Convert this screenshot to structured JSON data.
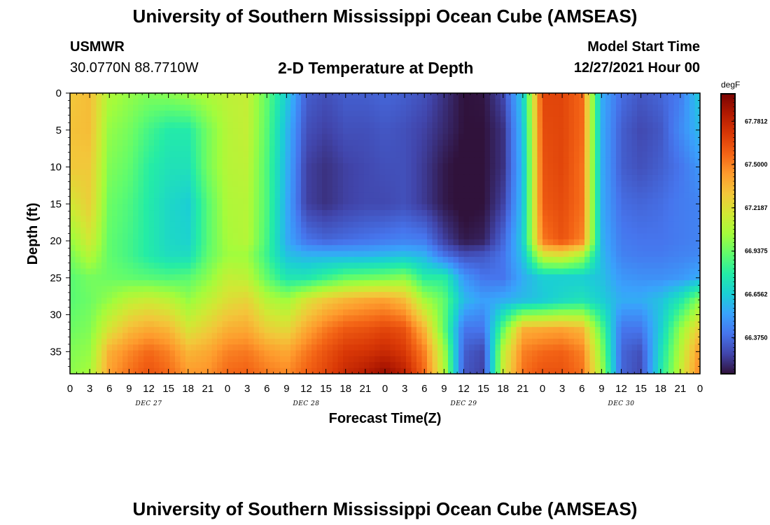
{
  "header": {
    "title": "University of Southern Mississippi Ocean Cube (AMSEAS)",
    "station": "USMWR",
    "coords": "30.0770N  88.7710W",
    "chart_title": "2-D Temperature at Depth",
    "model_start_label": "Model Start Time",
    "model_start_value": "12/27/2021 Hour 00"
  },
  "footer": {
    "title": "University of Southern Mississippi Ocean Cube (AMSEAS)"
  },
  "chart_data": {
    "type": "heatmap",
    "title": "2-D Temperature at Depth",
    "xlabel": "Forecast Time(Z)",
    "ylabel": "Depth (ft)",
    "colorbar_unit": "degF",
    "x_hours": [
      0,
      3,
      6,
      9,
      12,
      15,
      18,
      21,
      24,
      27,
      30,
      33,
      36,
      39,
      42,
      45,
      48,
      51,
      54,
      57,
      60,
      63,
      66,
      69,
      72,
      75,
      78,
      81,
      84,
      87,
      90,
      93,
      96
    ],
    "x_tick_labels": [
      "0",
      "3",
      "6",
      "9",
      "12",
      "15",
      "18",
      "21",
      "0",
      "3",
      "6",
      "9",
      "12",
      "15",
      "18",
      "21",
      "0",
      "3",
      "6",
      "9",
      "12",
      "15",
      "18",
      "21",
      "0",
      "3",
      "6",
      "9",
      "12",
      "15",
      "18",
      "21",
      "0"
    ],
    "date_labels": [
      {
        "text": "DEC 27",
        "hour": 12
      },
      {
        "text": "DEC 28",
        "hour": 36
      },
      {
        "text": "DEC 29",
        "hour": 60
      },
      {
        "text": "DEC 30",
        "hour": 84
      }
    ],
    "y_ticks": [
      0,
      5,
      10,
      15,
      20,
      25,
      30,
      35
    ],
    "ylim": [
      0,
      38
    ],
    "xlim": [
      0,
      96
    ],
    "colorbar_ticks": [
      "67.7812",
      "67.5000",
      "67.2187",
      "66.9375",
      "66.6562",
      "66.3750"
    ],
    "colorbar_range": [
      66.14,
      67.96
    ],
    "colorscale": [
      "#30123b",
      "#4145ab",
      "#4675ed",
      "#39a2fc",
      "#1bcfd4",
      "#24eca6",
      "#61fc6c",
      "#a4fc3b",
      "#d1e834",
      "#f3c63a",
      "#fe9b2d",
      "#f36315",
      "#d93806",
      "#b11901",
      "#7a0402"
    ],
    "grid_hours": [
      0,
      3,
      6,
      9,
      12,
      15,
      18,
      21,
      24,
      27,
      30,
      33,
      36,
      39,
      42,
      45,
      48,
      51,
      54,
      57,
      60,
      63,
      66,
      69,
      72,
      75,
      78,
      81,
      84,
      87,
      90,
      93,
      96
    ],
    "grid_depths": [
      0,
      5,
      10,
      15,
      20,
      22,
      25,
      28,
      32,
      35,
      38
    ],
    "temperature": [
      [
        67.3,
        67.34,
        67.08,
        67.02,
        66.98,
        67.0,
        67.04,
        67.08,
        67.12,
        67.14,
        66.92,
        66.66,
        66.34,
        66.3,
        66.34,
        66.34,
        66.36,
        66.34,
        66.3,
        66.22,
        66.14,
        66.15,
        66.28,
        66.66,
        67.66,
        67.66,
        67.56,
        66.56,
        66.38,
        66.32,
        66.36,
        66.42,
        66.66
      ],
      [
        67.32,
        67.34,
        67.02,
        66.96,
        66.86,
        66.78,
        66.78,
        66.96,
        67.1,
        67.14,
        66.9,
        66.6,
        66.3,
        66.26,
        66.3,
        66.3,
        66.32,
        66.3,
        66.26,
        66.2,
        66.14,
        66.14,
        66.22,
        66.62,
        67.64,
        67.66,
        67.56,
        66.56,
        66.34,
        66.28,
        66.32,
        66.46,
        66.6
      ],
      [
        67.3,
        67.3,
        66.98,
        66.92,
        66.8,
        66.74,
        66.74,
        66.96,
        67.1,
        67.12,
        66.88,
        66.58,
        66.26,
        66.22,
        66.26,
        66.28,
        66.3,
        66.3,
        66.24,
        66.16,
        66.12,
        66.14,
        66.22,
        66.6,
        67.62,
        67.66,
        67.54,
        66.56,
        66.34,
        66.3,
        66.34,
        66.4,
        66.5
      ],
      [
        67.18,
        67.28,
        66.94,
        66.88,
        66.78,
        66.7,
        66.66,
        66.9,
        67.08,
        67.1,
        66.88,
        66.56,
        66.26,
        66.22,
        66.26,
        66.28,
        66.28,
        66.3,
        66.24,
        66.16,
        66.12,
        66.14,
        66.26,
        66.62,
        67.6,
        67.64,
        67.54,
        66.56,
        66.38,
        66.36,
        66.38,
        66.42,
        66.44
      ],
      [
        67.02,
        67.18,
        66.92,
        66.86,
        66.78,
        66.7,
        66.68,
        66.9,
        67.06,
        67.1,
        66.86,
        66.56,
        66.4,
        66.36,
        66.38,
        66.4,
        66.42,
        66.44,
        66.42,
        66.26,
        66.16,
        66.18,
        66.36,
        66.66,
        67.52,
        67.62,
        67.5,
        66.58,
        66.42,
        66.4,
        66.4,
        66.42,
        66.44
      ],
      [
        66.96,
        67.1,
        66.92,
        66.86,
        66.78,
        66.72,
        66.72,
        66.92,
        67.04,
        67.04,
        66.84,
        66.62,
        66.58,
        66.58,
        66.58,
        66.58,
        66.6,
        66.62,
        66.58,
        66.4,
        66.3,
        66.32,
        66.4,
        66.62,
        67.16,
        67.2,
        67.06,
        66.6,
        66.44,
        66.42,
        66.42,
        66.44,
        66.46
      ],
      [
        66.9,
        66.96,
        66.94,
        66.92,
        66.9,
        66.88,
        66.9,
        67.0,
        67.14,
        67.12,
        66.92,
        66.76,
        66.76,
        66.84,
        66.92,
        66.94,
        66.96,
        67.0,
        66.8,
        66.8,
        66.5,
        66.4,
        66.4,
        66.56,
        66.66,
        66.66,
        66.66,
        66.62,
        66.5,
        66.48,
        66.48,
        66.5,
        66.56
      ],
      [
        66.9,
        66.94,
        67.02,
        67.12,
        67.16,
        67.12,
        67.02,
        67.12,
        67.22,
        67.26,
        67.1,
        67.04,
        67.2,
        67.3,
        67.36,
        67.4,
        67.42,
        67.34,
        67.06,
        66.92,
        66.6,
        66.52,
        66.56,
        66.6,
        66.64,
        66.7,
        66.74,
        66.66,
        66.56,
        66.56,
        66.62,
        66.76,
        67.0
      ],
      [
        66.94,
        66.98,
        67.2,
        67.34,
        67.4,
        67.36,
        67.2,
        67.28,
        67.38,
        67.4,
        67.28,
        67.24,
        67.4,
        67.52,
        67.6,
        67.62,
        67.66,
        67.62,
        67.36,
        66.92,
        66.4,
        66.4,
        66.92,
        67.38,
        67.4,
        67.42,
        67.36,
        66.9,
        66.4,
        66.4,
        66.66,
        67.02,
        67.3
      ],
      [
        66.98,
        67.02,
        67.38,
        67.48,
        67.56,
        67.5,
        67.36,
        67.4,
        67.5,
        67.52,
        67.44,
        67.4,
        67.52,
        67.62,
        67.7,
        67.72,
        67.76,
        67.7,
        67.5,
        67.06,
        66.34,
        66.28,
        67.12,
        67.5,
        67.56,
        67.58,
        67.5,
        67.0,
        66.36,
        66.3,
        66.72,
        67.1,
        67.46
      ],
      [
        67.0,
        67.06,
        67.42,
        67.54,
        67.62,
        67.56,
        67.44,
        67.46,
        67.56,
        67.58,
        67.52,
        67.48,
        67.58,
        67.66,
        67.76,
        67.82,
        67.9,
        67.8,
        67.56,
        67.1,
        66.32,
        66.26,
        67.16,
        67.54,
        67.62,
        67.62,
        67.54,
        67.06,
        66.36,
        66.28,
        66.76,
        67.14,
        67.5
      ]
    ]
  }
}
